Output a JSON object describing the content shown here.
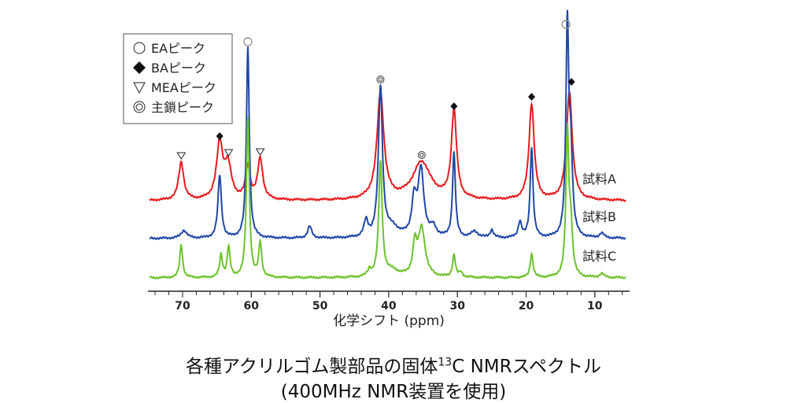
{
  "chart_data": {
    "type": "line",
    "title": "各種アクリルゴム製部品の固体13C NMRスペクトル",
    "title_parts": [
      "各種アクリルゴム製部品の固体",
      "13",
      "C NMRスペクトル"
    ],
    "subtitle": "(400MHz NMR装置を使用)",
    "xlabel": "化学シフト (ppm)",
    "xlim": [
      75,
      5
    ],
    "xticks": [
      70,
      60,
      50,
      40,
      30,
      20,
      10
    ],
    "xtick_labels": [
      "70",
      "60",
      "50",
      "40",
      "30",
      "20",
      "10"
    ],
    "legend": {
      "placement": "top-left",
      "entries": [
        {
          "symbol": "○",
          "label": "EAピーク"
        },
        {
          "symbol": "◆",
          "label": "BAピーク"
        },
        {
          "symbol": "▽",
          "label": "MEAピーク"
        },
        {
          "symbol": "◎",
          "label": "主鎖ピーク"
        }
      ]
    },
    "series": [
      {
        "name": "試料A",
        "color": "#e8191c",
        "offset": 0,
        "peaks": [
          [
            70.2,
            48,
            0.45
          ],
          [
            64.6,
            70,
            0.55
          ],
          [
            63.4,
            42,
            0.6
          ],
          [
            60.5,
            40,
            0.4
          ],
          [
            58.7,
            52,
            0.45
          ],
          [
            41.2,
            135,
            0.6
          ],
          [
            35.2,
            48,
            1.6
          ],
          [
            30.5,
            112,
            0.45
          ],
          [
            19.2,
            122,
            0.45
          ],
          [
            13.7,
            138,
            0.5
          ]
        ]
      },
      {
        "name": "試料B",
        "color": "#1f47a8",
        "offset": 1,
        "peaks": [
          [
            69.8,
            10,
            0.5
          ],
          [
            64.6,
            80,
            0.3
          ],
          [
            60.5,
            243,
            0.25
          ],
          [
            51.5,
            15,
            0.35
          ],
          [
            43.3,
            20,
            0.35
          ],
          [
            41.2,
            190,
            0.35
          ],
          [
            39.5,
            12,
            1.2
          ],
          [
            36.3,
            45,
            0.4
          ],
          [
            35.3,
            85,
            0.5
          ],
          [
            33.5,
            12,
            0.5
          ],
          [
            30.5,
            108,
            0.25
          ],
          [
            27.5,
            8,
            0.6
          ],
          [
            25,
            10,
            0.3
          ],
          [
            20.9,
            20,
            0.3
          ],
          [
            19.2,
            115,
            0.25
          ],
          [
            14.0,
            262,
            0.25
          ],
          [
            13.5,
            100,
            0.3
          ],
          [
            9,
            6,
            0.4
          ]
        ]
      },
      {
        "name": "試料C",
        "color": "#6cc22c",
        "offset": 2,
        "peaks": [
          [
            70.2,
            42,
            0.25
          ],
          [
            64.4,
            28,
            0.25
          ],
          [
            63.3,
            38,
            0.25
          ],
          [
            60.5,
            205,
            0.25
          ],
          [
            58.7,
            44,
            0.25
          ],
          [
            42.8,
            8,
            0.3
          ],
          [
            41.2,
            145,
            0.3
          ],
          [
            39.5,
            8,
            1.2
          ],
          [
            36.2,
            38,
            0.35
          ],
          [
            35.2,
            62,
            0.6
          ],
          [
            30.5,
            28,
            0.25
          ],
          [
            29.5,
            6,
            0.3
          ],
          [
            19.2,
            30,
            0.25
          ],
          [
            14.0,
            180,
            0.25
          ],
          [
            13.5,
            60,
            0.3
          ],
          [
            9,
            5,
            0.4
          ]
        ]
      }
    ],
    "annotations": [
      {
        "symbol": "○",
        "ppm": 60.5,
        "level": 300
      },
      {
        "symbol": "○",
        "ppm": 14.2,
        "level": 322
      },
      {
        "symbol": "◆",
        "ppm": 64.6,
        "level": 180
      },
      {
        "symbol": "◆",
        "ppm": 30.5,
        "level": 218
      },
      {
        "symbol": "◆",
        "ppm": 19.2,
        "level": 230
      },
      {
        "symbol": "◆",
        "ppm": 13.4,
        "level": 249
      },
      {
        "symbol": "▽",
        "ppm": 70.2,
        "level": 155
      },
      {
        "symbol": "▽",
        "ppm": 63.3,
        "level": 159
      },
      {
        "symbol": "▽",
        "ppm": 58.7,
        "level": 160
      },
      {
        "symbol": "◎",
        "ppm": 41.2,
        "level": 252
      },
      {
        "symbol": "◎",
        "ppm": 35.2,
        "level": 156
      }
    ]
  }
}
